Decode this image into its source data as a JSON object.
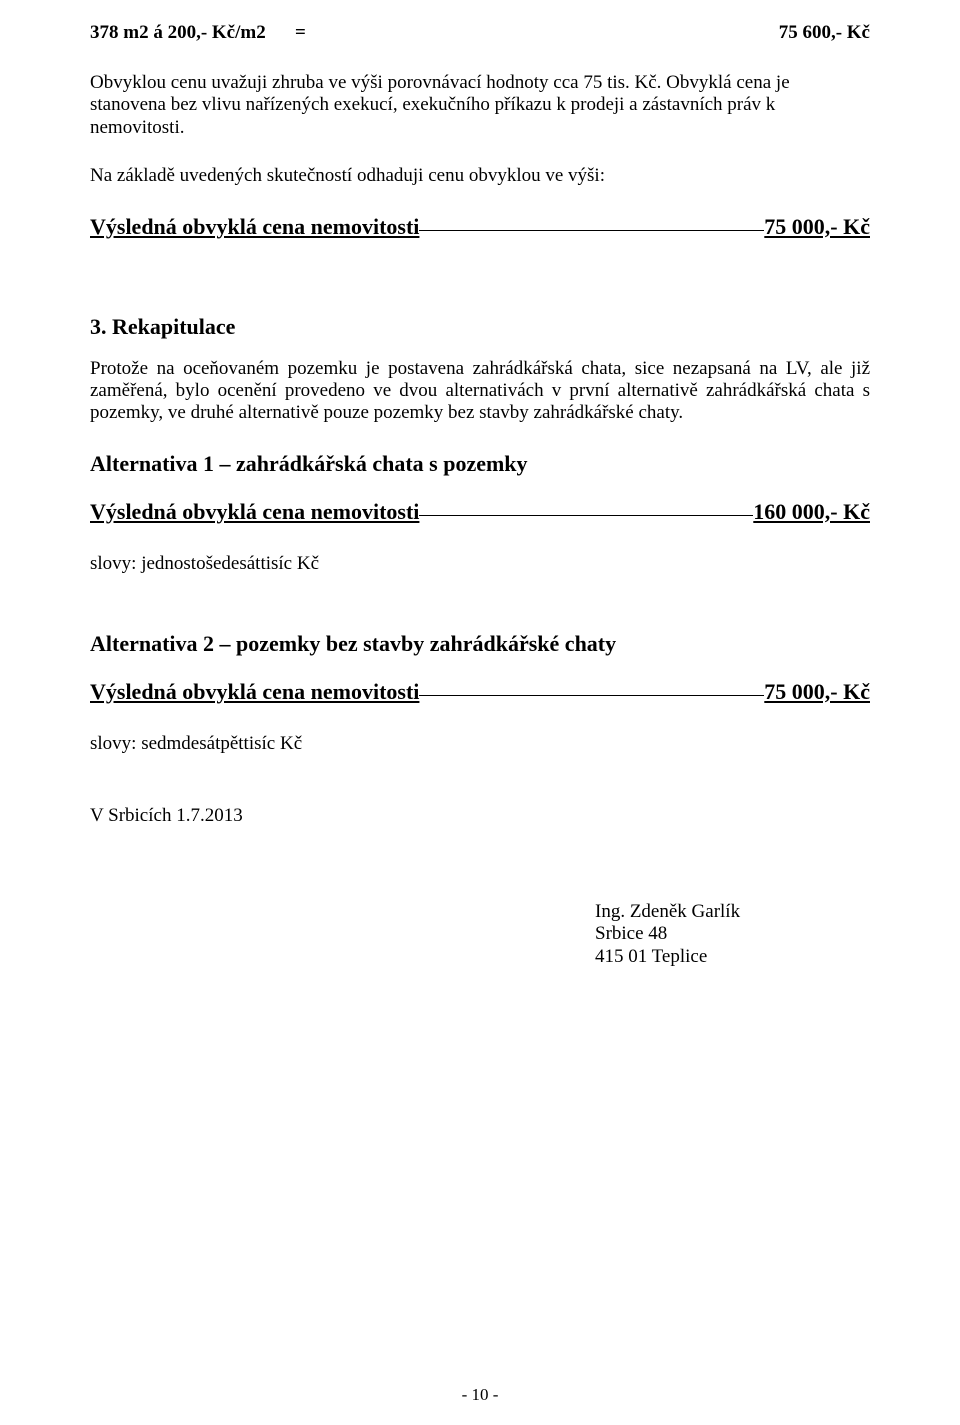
{
  "top_row": {
    "left": "378 m2 á 200,- Kč/m2",
    "eq": "=",
    "right": "75 600,- Kč"
  },
  "para1": "Obvyklou cenu uvažuji zhruba ve výši porovnávací hodnoty cca 75 tis. Kč. Obvyklá cena je stanovena bez vlivu nařízených exekucí, exekučního příkazu k prodeji a zástavních práv k nemovitosti.",
  "para2": "Na základě uvedených skutečností odhaduji cenu obvyklou ve výši:",
  "result0": {
    "label": "Výsledná obvyklá cena nemovitosti",
    "price": "75 000,- Kč"
  },
  "section3_heading": "3. Rekapitulace",
  "para3": "Protože na oceňovaném pozemku je postavena zahrádkářská chata, sice nezapsaná na LV, ale již zaměřená, bylo ocenění provedeno ve dvou alternativách  v první alternativě zahrádkářská chata s pozemky, ve druhé alternativě pouze pozemky bez stavby zahrádkářské chaty.",
  "alt1_heading": "Alternativa 1 – zahrádkářská chata s pozemky",
  "result1": {
    "label": "Výsledná obvyklá cena nemovitosti",
    "price": "160 000,- Kč"
  },
  "slovy1": "slovy: jednostošedesáttisíc Kč",
  "alt2_heading": "Alternativa 2 – pozemky bez stavby zahrádkářské chaty",
  "result2": {
    "label": "Výsledná obvyklá cena nemovitosti",
    "price": "75 000,- Kč"
  },
  "slovy2": "slovy: sedmdesátpěttisíc Kč",
  "date_line": "V Srbicích 1.7.2013",
  "signature": {
    "name": "Ing. Zdeněk Garlík",
    "addr1": "Srbice 48",
    "addr2": "415 01 Teplice"
  },
  "page_number": "- 10 -"
}
